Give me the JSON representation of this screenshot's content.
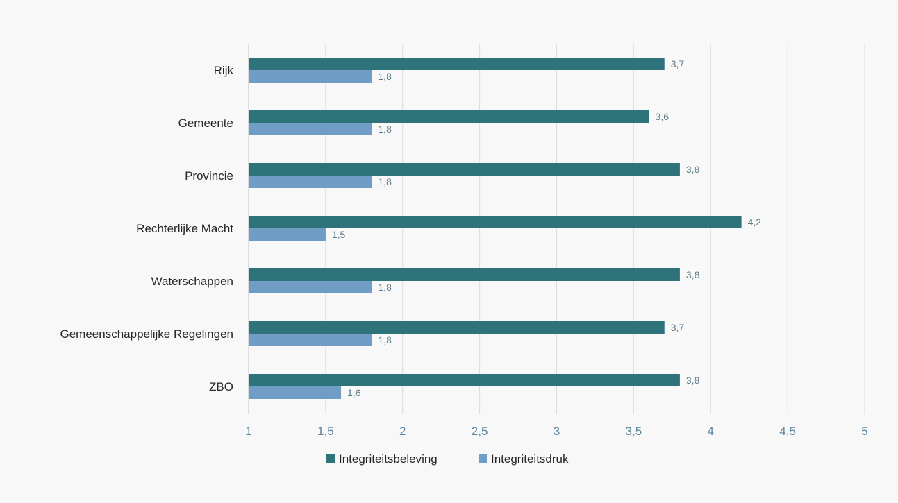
{
  "chart_data": {
    "type": "bar",
    "orientation": "horizontal",
    "categories": [
      "Rijk",
      "Gemeente",
      "Provincie",
      "Rechterlijke Macht",
      "Waterschappen",
      "Gemeenschappelijke Regelingen",
      "ZBO"
    ],
    "series": [
      {
        "name": "Integriteitsbeleving",
        "color": "#2e727a",
        "values": [
          3.7,
          3.6,
          3.8,
          4.2,
          3.8,
          3.7,
          3.8
        ]
      },
      {
        "name": "Integriteitsdruk",
        "color": "#6f9dc5",
        "values": [
          1.8,
          1.8,
          1.8,
          1.5,
          1.8,
          1.8,
          1.6
        ]
      }
    ],
    "data_labels": [
      [
        "3,7",
        "3,6",
        "3,8",
        "4,2",
        "3,8",
        "3,7",
        "3,8"
      ],
      [
        "1,8",
        "1,8",
        "1,8",
        "1,5",
        "1,8",
        "1,8",
        "1,6"
      ]
    ],
    "xlim": [
      1,
      5
    ],
    "xticks": [
      1,
      1.5,
      2,
      2.5,
      3,
      3.5,
      4,
      4.5,
      5
    ],
    "xtick_labels": [
      "1",
      "1,5",
      "2",
      "2,5",
      "3",
      "3,5",
      "4",
      "4,5",
      "5"
    ],
    "grid": "vertical",
    "legend": "bottom",
    "title": "",
    "xlabel": "",
    "ylabel": ""
  }
}
